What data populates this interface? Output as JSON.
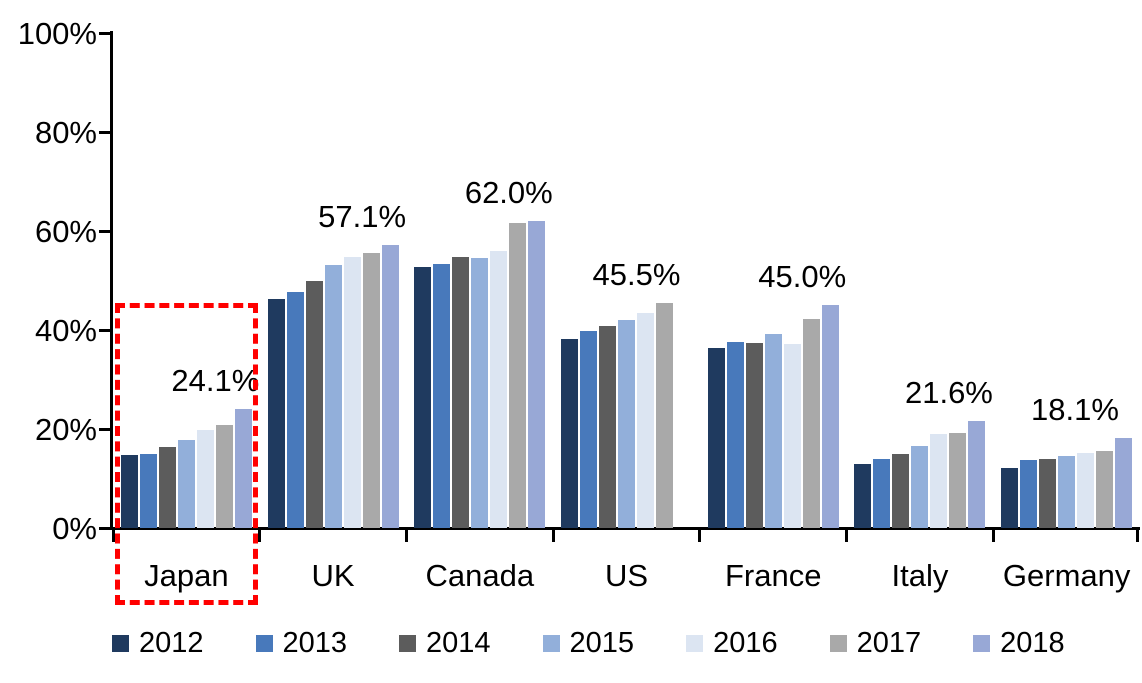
{
  "chart_data": {
    "type": "bar",
    "title": "",
    "xlabel": "",
    "ylabel": "",
    "ylim": [
      0,
      100
    ],
    "grid": false,
    "legend_position": "bottom",
    "y_tick_labels": [
      "0%",
      "20%",
      "40%",
      "60%",
      "80%",
      "100%"
    ],
    "y_tick_values": [
      0,
      20,
      40,
      60,
      80,
      100
    ],
    "categories": [
      "Japan",
      "UK",
      "Canada",
      "US",
      "France",
      "Italy",
      "Germany"
    ],
    "series": [
      {
        "name": "2012",
        "color": "#1F3A5F",
        "values": [
          14.7,
          46.3,
          52.8,
          38.2,
          36.4,
          13.0,
          12.2
        ]
      },
      {
        "name": "2013",
        "color": "#4879BB",
        "values": [
          14.9,
          47.7,
          53.3,
          39.8,
          37.6,
          13.9,
          13.7
        ]
      },
      {
        "name": "2014",
        "color": "#5C5C5C",
        "values": [
          16.4,
          49.9,
          54.7,
          40.8,
          37.4,
          15.0,
          14.0
        ]
      },
      {
        "name": "2015",
        "color": "#92AFDA",
        "values": [
          17.8,
          53.1,
          54.5,
          42.1,
          39.1,
          16.6,
          14.5
        ]
      },
      {
        "name": "2016",
        "color": "#DCE5F2",
        "values": [
          19.8,
          54.7,
          56.0,
          43.4,
          37.2,
          18.9,
          15.2
        ]
      },
      {
        "name": "2017",
        "color": "#A9A9A9",
        "values": [
          20.8,
          55.6,
          61.6,
          45.5,
          42.2,
          19.1,
          15.6
        ]
      },
      {
        "name": "2018",
        "color": "#98A8D6",
        "values": [
          24.1,
          57.1,
          62.0,
          null,
          45.0,
          21.6,
          18.1
        ]
      }
    ],
    "data_labels": [
      "24.1%",
      "57.1%",
      "62.0%",
      "45.5%",
      "45.0%",
      "21.6%",
      "18.1%"
    ],
    "annotation": {
      "type": "dashed-box",
      "target_category": "Japan",
      "color": "#FF0000"
    }
  }
}
